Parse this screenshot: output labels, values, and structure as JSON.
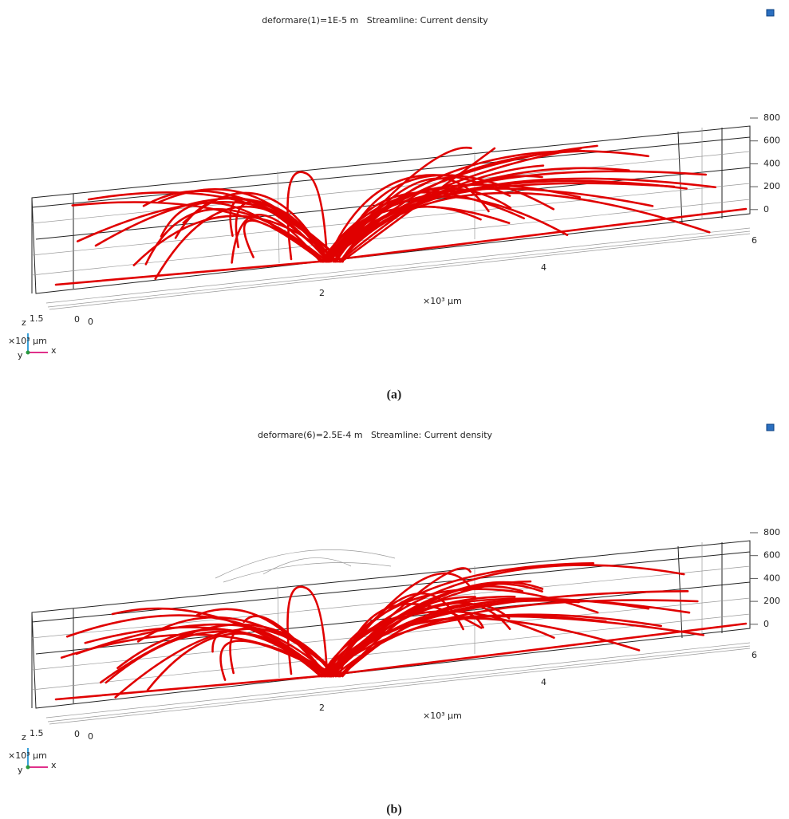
{
  "panels": [
    {
      "title": "deformare(1)=1E-5 m   Streamline: Current density",
      "z_ticks": [
        "800",
        "600",
        "400",
        "200",
        "0"
      ],
      "x_ticks": [
        "6",
        "4",
        "2",
        "0"
      ],
      "y_tick": "0",
      "x_unit": "×10³ μm",
      "triad": {
        "z": "z",
        "scale": "1.5",
        "unit": "×10³ μm",
        "y": "y",
        "x": "x"
      },
      "caption": "(a)"
    },
    {
      "title": "deformare(6)=2.5E-4 m   Streamline: Current density",
      "z_ticks": [
        "800",
        "600",
        "400",
        "200",
        "0"
      ],
      "x_ticks": [
        "6",
        "4",
        "2",
        "0"
      ],
      "y_tick": "0",
      "x_unit": "×10³ μm",
      "triad": {
        "z": "z",
        "scale": "1.5",
        "unit": "×10³ μm",
        "y": "y",
        "x": "x"
      },
      "caption": "(b)"
    }
  ]
}
